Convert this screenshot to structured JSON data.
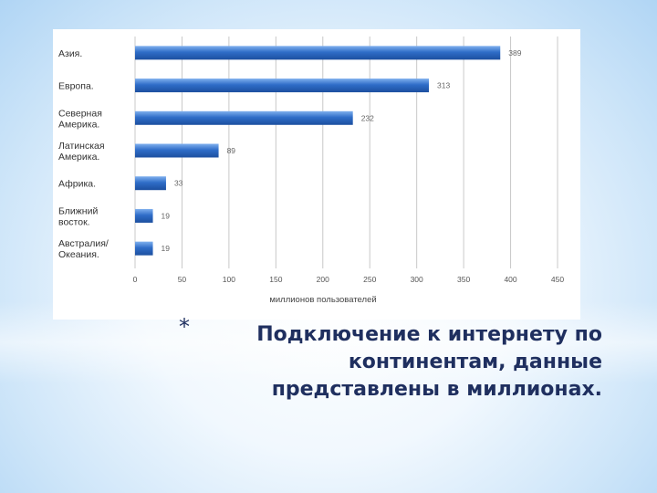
{
  "chart_data": {
    "type": "bar",
    "orientation": "horizontal",
    "categories": [
      [
        "Азия."
      ],
      [
        "Европа."
      ],
      [
        "Северная",
        "Америка."
      ],
      [
        "Латинская",
        "Америка."
      ],
      [
        "Африка."
      ],
      [
        "Ближний",
        "восток."
      ],
      [
        "Австралия/",
        "Океания."
      ]
    ],
    "values": [
      389,
      313,
      232,
      89,
      33,
      19,
      19
    ],
    "value_labels": [
      "389",
      "313",
      "232",
      "89",
      "33",
      "19",
      "19"
    ],
    "xlim": [
      0,
      450
    ],
    "xticks": [
      "0",
      "50",
      "100",
      "150",
      "200",
      "250",
      "300",
      "350",
      "400",
      "450"
    ],
    "xlabel": "миллионов пользователей",
    "grid": true,
    "bar_color": "#2f6dc8"
  },
  "caption": {
    "bullet": "*",
    "lines": [
      "Подключение к интернету по",
      "континентам, данные",
      "представлены в миллионах."
    ]
  }
}
